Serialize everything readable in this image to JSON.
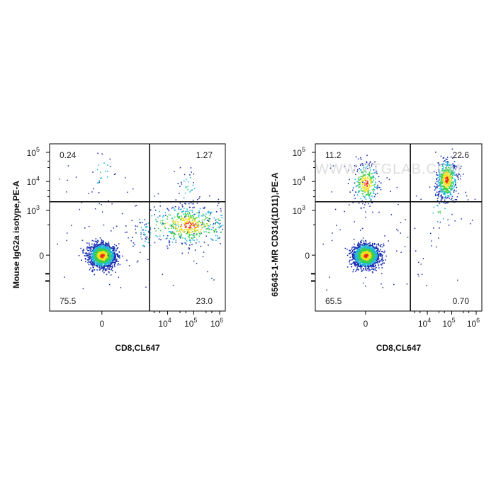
{
  "watermark": "WWW.PTGLAB.COM",
  "colors": {
    "density_low": "#1a2fb0",
    "density_mid_low": "#23b8d8",
    "density_mid": "#3ccf4a",
    "density_mid_high": "#f0e020",
    "density_high": "#e83018",
    "gate_line": "#000000",
    "frame": "#000000"
  },
  "chart_data": [
    {
      "type": "scatter",
      "subtype": "flow-cytometry-density-dot-plot",
      "xlabel": "CD8,CL647",
      "ylabel": "Mouse IgG2a isotype,PE-A",
      "x_scale": "biexponential",
      "y_scale": "biexponential",
      "x_ticks": [
        {
          "value": 0,
          "label": "0"
        },
        {
          "value": 10000,
          "label": "10",
          "sup": "4"
        },
        {
          "value": 100000,
          "label": "10",
          "sup": "5"
        },
        {
          "value": 1000000,
          "label": "10",
          "sup": "6"
        }
      ],
      "y_ticks": [
        {
          "value": 0,
          "label": "0"
        },
        {
          "value": 1000,
          "label": "10",
          "sup": "3"
        },
        {
          "value": 10000,
          "label": "10",
          "sup": "4"
        },
        {
          "value": 100000,
          "label": "10",
          "sup": "5"
        }
      ],
      "gate_x": 2000,
      "gate_y": 2000,
      "quadrants": {
        "upper_left": "0.24",
        "upper_right": "1.27",
        "lower_left": "75.5",
        "lower_right": "23.0"
      },
      "populations": [
        {
          "x": 0,
          "y": 0,
          "share": 0.755
        },
        {
          "x": 60000,
          "y": 300,
          "share": 0.23
        },
        {
          "x": 1500,
          "y": 100,
          "share": 0.0
        },
        {
          "x": 0,
          "y": 20000,
          "share": 0.0024
        },
        {
          "x": 60000,
          "y": 6000,
          "share": 0.0127
        }
      ],
      "grid": false,
      "legend": "none"
    },
    {
      "type": "scatter",
      "subtype": "flow-cytometry-density-dot-plot",
      "xlabel": "CD8,CL647",
      "ylabel": "65643-1-MR CD314(1D11),PE-A",
      "x_scale": "biexponential",
      "y_scale": "biexponential",
      "x_ticks": [
        {
          "value": 0,
          "label": "0"
        },
        {
          "value": 10000,
          "label": "10",
          "sup": "4"
        },
        {
          "value": 100000,
          "label": "10",
          "sup": "5"
        },
        {
          "value": 1000000,
          "label": "10",
          "sup": "6"
        }
      ],
      "y_ticks": [
        {
          "value": 0,
          "label": "0"
        },
        {
          "value": 1000,
          "label": "10",
          "sup": "3"
        },
        {
          "value": 10000,
          "label": "10",
          "sup": "4"
        },
        {
          "value": 100000,
          "label": "10",
          "sup": "5"
        }
      ],
      "gate_x": 2000,
      "gate_y": 2000,
      "quadrants": {
        "upper_left": "11.2",
        "upper_right": "22.6",
        "lower_left": "65.5",
        "lower_right": "0.70"
      },
      "populations": [
        {
          "x": 0,
          "y": 0,
          "share": 0.655
        },
        {
          "x": 0,
          "y": 9000,
          "share": 0.112
        },
        {
          "x": 60000,
          "y": 12000,
          "share": 0.226
        },
        {
          "x": 30000,
          "y": 1000,
          "share": 0.007
        }
      ],
      "grid": false,
      "legend": "none"
    }
  ]
}
